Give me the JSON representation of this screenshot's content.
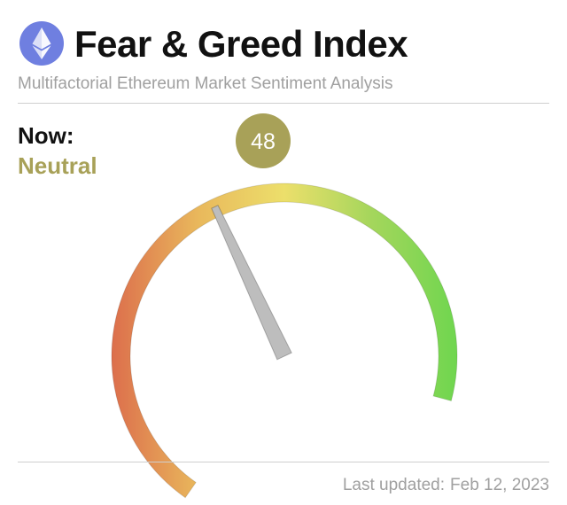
{
  "header": {
    "logo_icon": "ethereum-logo-icon",
    "title": "Fear & Greed Index",
    "subtitle": "Multifactorial Ethereum Market Sentiment Analysis"
  },
  "status": {
    "now_label": "Now:",
    "classification": "Neutral",
    "classification_color": "#a8a158"
  },
  "chart_data": {
    "type": "gauge",
    "value": 48,
    "range": [
      0,
      100
    ],
    "value_label": "48",
    "value_badge_color": "#a8a158",
    "needle_color": "#bdbdbd",
    "gradient_colors": [
      "#dc6e4c",
      "#e9b85c",
      "#ecdf6b",
      "#a5d65c",
      "#6fd64f"
    ]
  },
  "footer": {
    "updated_label": "Last updated:",
    "updated_date": "Feb 12, 2023"
  }
}
